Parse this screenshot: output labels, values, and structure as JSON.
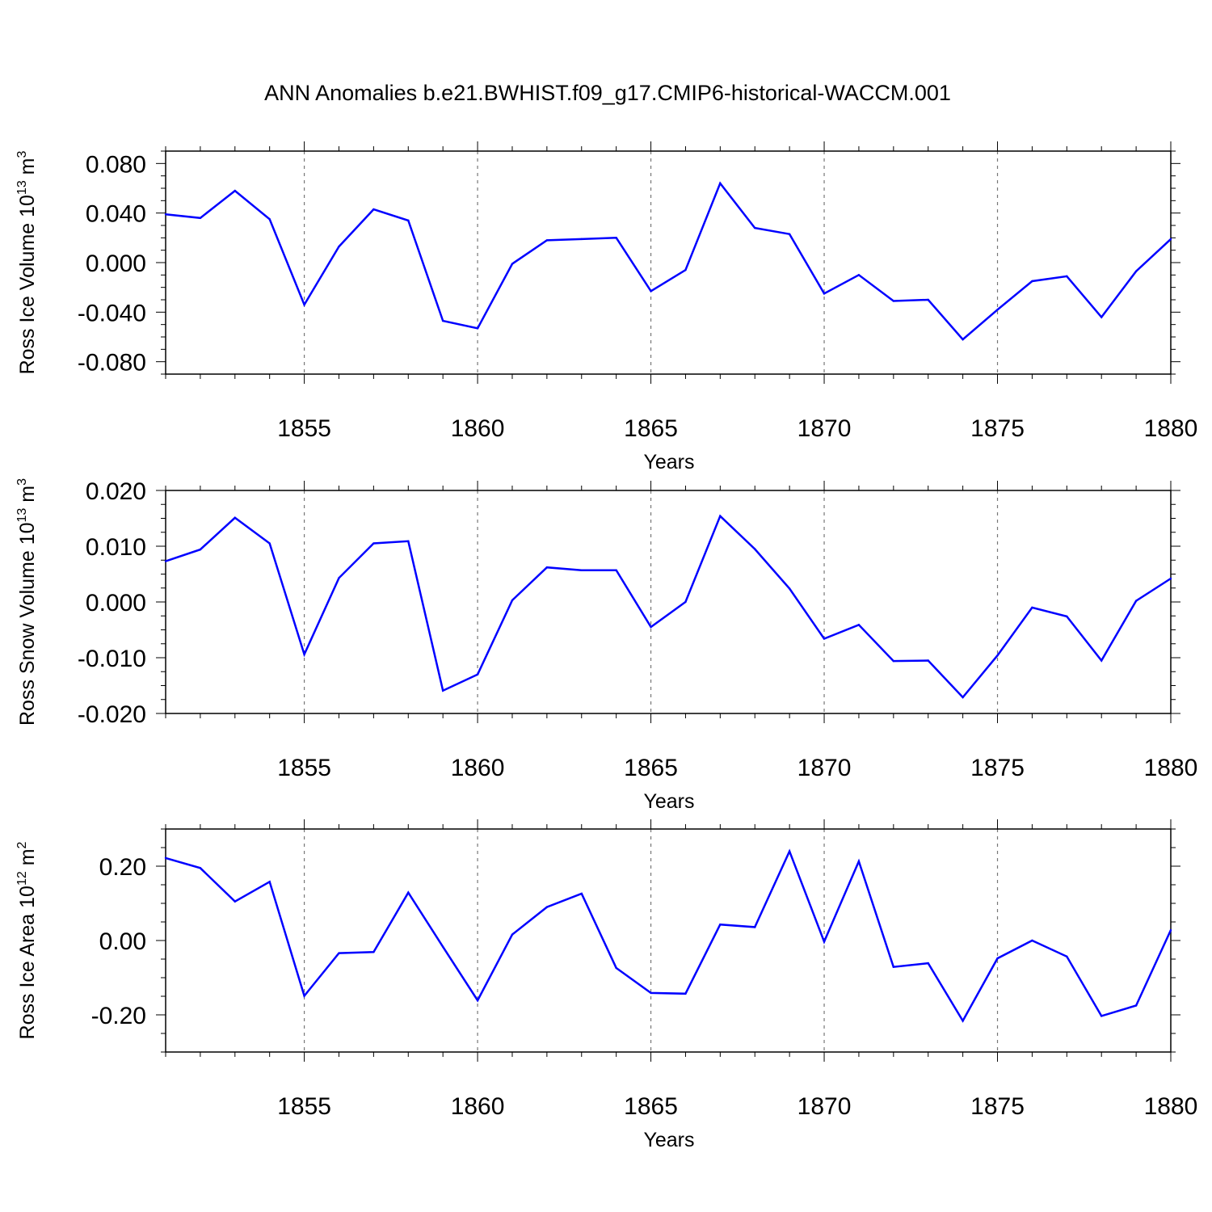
{
  "figure": {
    "title": "ANN Anomalies b.e21.BWHIST.f09_g17.CMIP6-historical-WACCM.001"
  },
  "chart_data": [
    {
      "type": "line",
      "ylabel_main": "Ross Ice Volume 10",
      "ylabel_exp": "13",
      "ylabel_unit": " m",
      "ylabel_unit_exp": "3",
      "xlabel": "Years",
      "xlim": [
        1851,
        1880
      ],
      "ylim": [
        -0.09,
        0.09
      ],
      "xticks": [
        1855,
        1860,
        1865,
        1870,
        1875,
        1880
      ],
      "xtick_labels": [
        "1855",
        "1860",
        "1865",
        "1870",
        "1875",
        "1880"
      ],
      "yticks": [
        0.08,
        0.04,
        0.0,
        -0.04,
        -0.08
      ],
      "ytick_labels": [
        "0.080",
        "0.040",
        "0.000",
        "-0.040",
        "-0.080"
      ],
      "grid": "vertical dashed at major x ticks",
      "color": "#0000ff",
      "x": [
        1851,
        1852,
        1853,
        1854,
        1855,
        1856,
        1857,
        1858,
        1859,
        1860,
        1861,
        1862,
        1863,
        1864,
        1865,
        1866,
        1867,
        1868,
        1869,
        1870,
        1871,
        1872,
        1873,
        1874,
        1875,
        1876,
        1877,
        1878,
        1879,
        1880
      ],
      "y": [
        0.039,
        0.036,
        0.058,
        0.035,
        -0.034,
        0.013,
        0.043,
        0.034,
        -0.047,
        -0.053,
        -0.001,
        0.018,
        0.019,
        0.02,
        -0.023,
        -0.006,
        0.064,
        0.028,
        0.023,
        -0.025,
        -0.01,
        -0.031,
        -0.03,
        -0.062,
        -0.038,
        -0.015,
        -0.011,
        -0.044,
        -0.007,
        0.019
      ]
    },
    {
      "type": "line",
      "ylabel_main": "Ross Snow Volume 10",
      "ylabel_exp": "13",
      "ylabel_unit": " m",
      "ylabel_unit_exp": "3",
      "xlabel": "Years",
      "xlim": [
        1851,
        1880
      ],
      "ylim": [
        -0.02,
        0.02
      ],
      "xticks": [
        1855,
        1860,
        1865,
        1870,
        1875,
        1880
      ],
      "xtick_labels": [
        "1855",
        "1860",
        "1865",
        "1870",
        "1875",
        "1880"
      ],
      "yticks": [
        0.02,
        0.01,
        0.0,
        -0.01,
        -0.02
      ],
      "ytick_labels": [
        "0.020",
        "0.010",
        "0.000",
        "-0.010",
        "-0.020"
      ],
      "grid": "vertical dashed at major x ticks",
      "color": "#0000ff",
      "x": [
        1851,
        1852,
        1853,
        1854,
        1855,
        1856,
        1857,
        1858,
        1859,
        1860,
        1861,
        1862,
        1863,
        1864,
        1865,
        1866,
        1867,
        1868,
        1869,
        1870,
        1871,
        1872,
        1873,
        1874,
        1875,
        1876,
        1877,
        1878,
        1879,
        1880
      ],
      "y": [
        0.0073,
        0.0094,
        0.0151,
        0.0105,
        -0.0094,
        0.0043,
        0.0105,
        0.0109,
        -0.0159,
        -0.013,
        0.0003,
        0.0062,
        0.0057,
        0.0057,
        -0.0045,
        0.0,
        0.0154,
        0.0095,
        0.0024,
        -0.0066,
        -0.0041,
        -0.0106,
        -0.0105,
        -0.0171,
        -0.0096,
        -0.001,
        -0.0026,
        -0.0105,
        0.0002,
        0.0042
      ]
    },
    {
      "type": "line",
      "ylabel_main": "Ross Ice Area 10",
      "ylabel_exp": "12",
      "ylabel_unit": " m",
      "ylabel_unit_exp": "2",
      "xlabel": "Years",
      "xlim": [
        1851,
        1880
      ],
      "ylim": [
        -0.3,
        0.3
      ],
      "xticks": [
        1855,
        1860,
        1865,
        1870,
        1875,
        1880
      ],
      "xtick_labels": [
        "1855",
        "1860",
        "1865",
        "1870",
        "1875",
        "1880"
      ],
      "yticks": [
        0.2,
        0.0,
        -0.2
      ],
      "ytick_labels": [
        "0.20",
        "0.00",
        "-0.20"
      ],
      "grid": "vertical dashed at major x ticks",
      "color": "#0000ff",
      "x": [
        1851,
        1852,
        1853,
        1854,
        1855,
        1856,
        1857,
        1858,
        1859,
        1860,
        1861,
        1862,
        1863,
        1864,
        1865,
        1866,
        1867,
        1868,
        1869,
        1870,
        1871,
        1872,
        1873,
        1874,
        1875,
        1876,
        1877,
        1878,
        1879,
        1880
      ],
      "y": [
        0.222,
        0.195,
        0.105,
        0.158,
        -0.149,
        -0.034,
        -0.031,
        0.129,
        -0.017,
        -0.161,
        0.016,
        0.09,
        0.126,
        -0.074,
        -0.141,
        -0.143,
        0.043,
        0.036,
        0.24,
        -0.003,
        0.213,
        -0.071,
        -0.061,
        -0.216,
        -0.048,
        0.0,
        -0.043,
        -0.203,
        -0.175,
        0.028
      ]
    }
  ]
}
